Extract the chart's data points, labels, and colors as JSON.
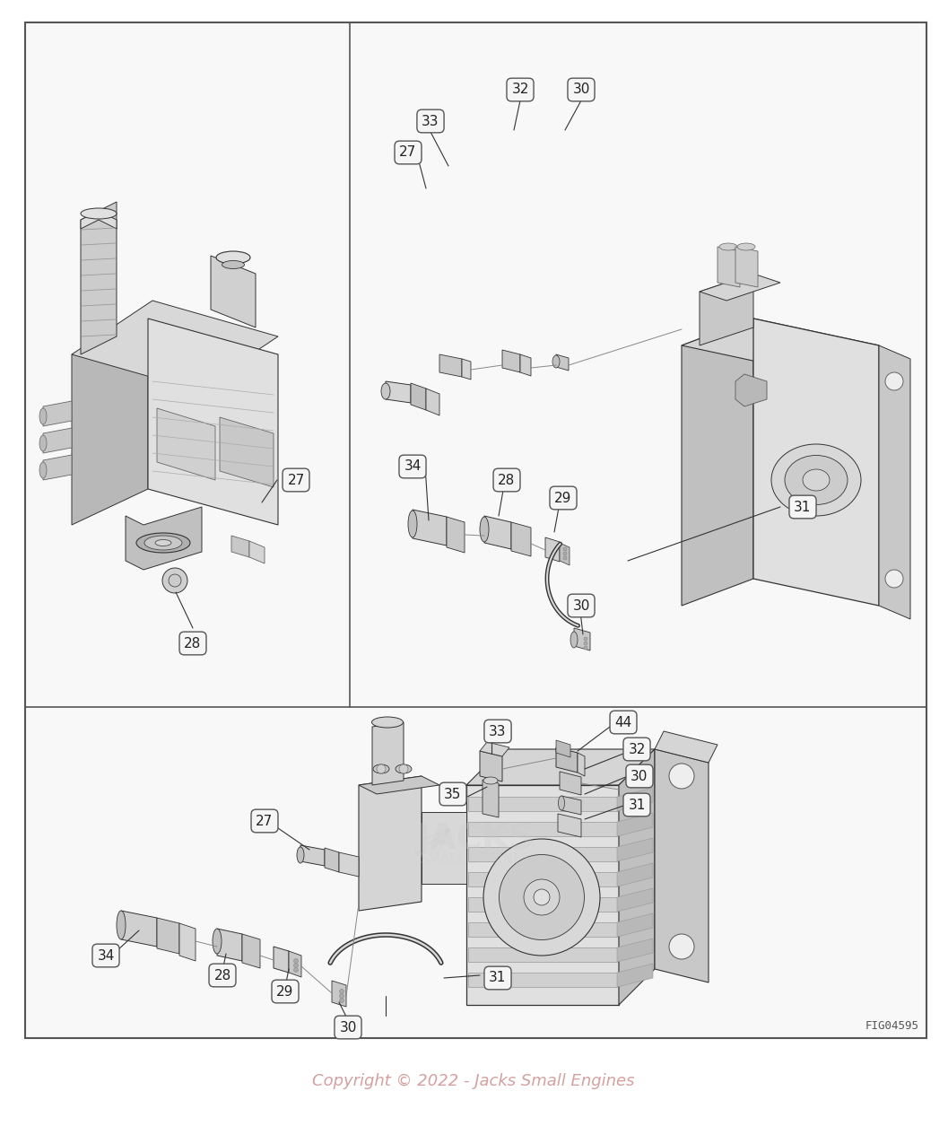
{
  "bg_color": "#ffffff",
  "border_color": "#444444",
  "line_color": "#333333",
  "label_fill": "#f0f0f0",
  "label_edge": "#555555",
  "part_fill": "#e8e8e8",
  "part_edge": "#333333",
  "part_dark": "#bbbbbb",
  "part_mid": "#d0d0d0",
  "part_light": "#ebebeb",
  "fig_number": "FIG04595",
  "copyright_text": "Copyright © 2022 - Jacks Small Engines",
  "copyright_color": "#d4a0a0",
  "fig_w": 10.57,
  "fig_h": 12.65
}
